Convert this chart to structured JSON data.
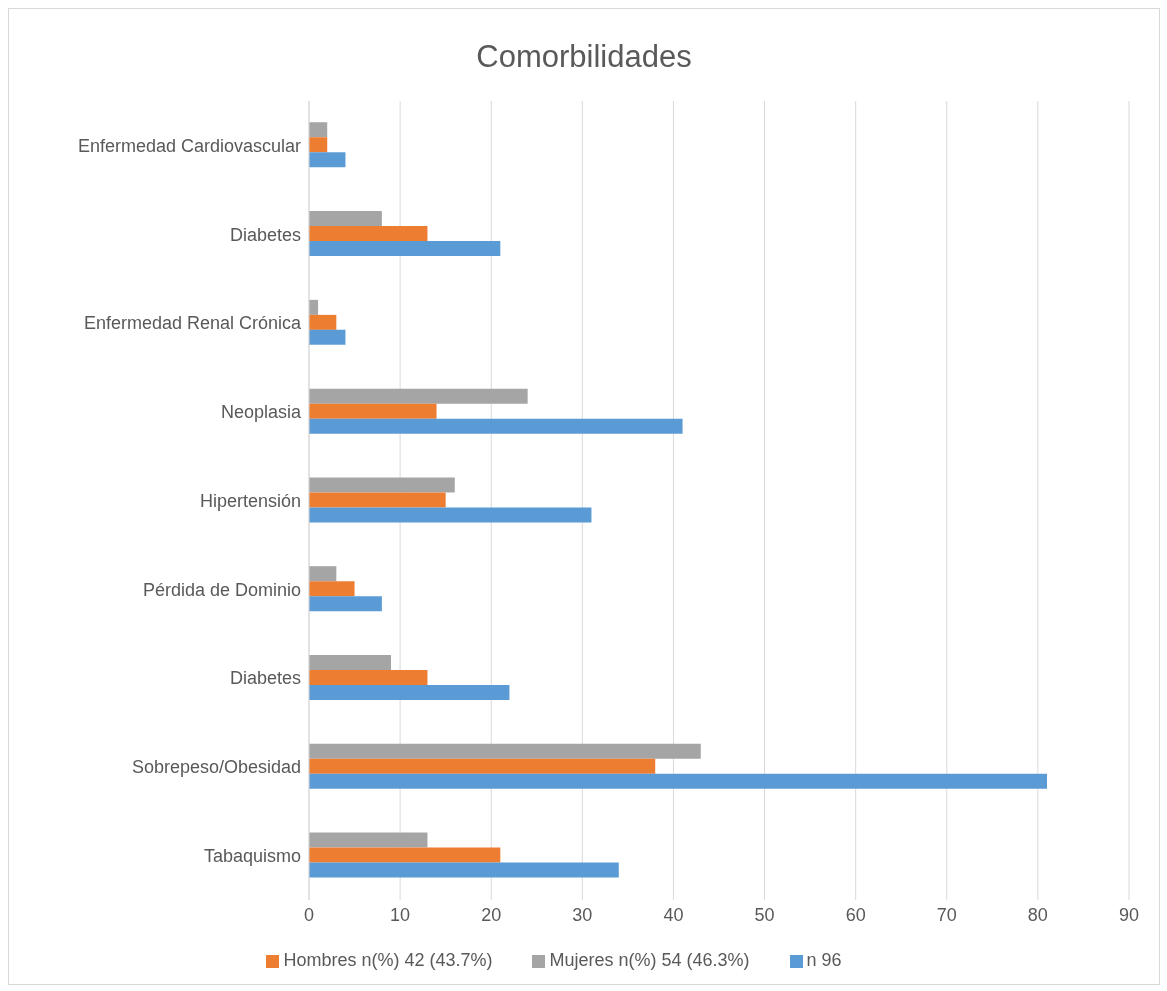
{
  "chart_data": {
    "type": "bar",
    "orientation": "horizontal",
    "title": "Comorbilidades",
    "categories": [
      "Enfermedad Cardiovascular",
      "Diabetes",
      "Enfermedad Renal Crónica",
      "Neoplasia",
      "Hipertensión",
      "Pérdida de Dominio",
      "Diabetes",
      "Sobrepeso/Obesidad",
      "Tabaquismo"
    ],
    "series": [
      {
        "name": "Mujeres n(%) 54 (46.3%)",
        "color": "#a5a5a5",
        "values": [
          2,
          8,
          1,
          24,
          16,
          3,
          9,
          43,
          13
        ]
      },
      {
        "name": "Hombres n(%) 42 (43.7%)",
        "color": "#ed7d31",
        "values": [
          2,
          13,
          3,
          14,
          15,
          5,
          13,
          38,
          21
        ]
      },
      {
        "name": "n 96",
        "color": "#5b9bd5",
        "values": [
          4,
          21,
          4,
          41,
          31,
          8,
          22,
          81,
          34
        ]
      }
    ],
    "xlim": [
      0,
      90
    ],
    "xticks": [
      0,
      10,
      20,
      30,
      40,
      50,
      60,
      70,
      80,
      90
    ],
    "grid": "x",
    "legend": "bottom"
  }
}
